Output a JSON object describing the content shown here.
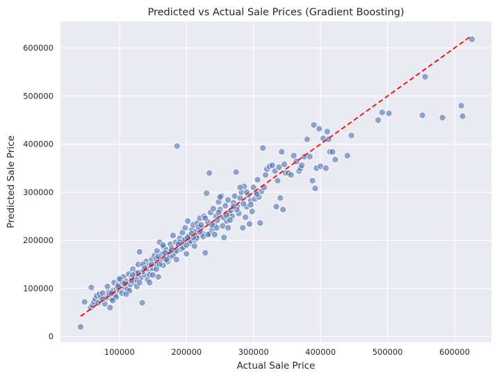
{
  "chart_data": {
    "type": "scatter",
    "title": "Predicted vs Actual Sale Prices (Gradient Boosting)",
    "xlabel": "Actual Sale Price",
    "ylabel": "Predicted Sale Price",
    "xlim": [
      12000,
      655000
    ],
    "ylim": [
      -12000,
      655000
    ],
    "xticks": [
      100000,
      200000,
      300000,
      400000,
      500000,
      600000
    ],
    "yticks": [
      0,
      100000,
      200000,
      300000,
      400000,
      500000,
      600000
    ],
    "xtick_labels": [
      "100000",
      "200000",
      "300000",
      "400000",
      "500000",
      "600000"
    ],
    "ytick_labels": [
      "0",
      "100000",
      "200000",
      "300000",
      "400000",
      "500000",
      "600000"
    ],
    "grid": true,
    "background": "#eaeaf2",
    "point_color": "#4c72b0",
    "reference_line": {
      "x": [
        42000,
        625000
      ],
      "y": [
        42000,
        625000
      ],
      "color": "#ff0000",
      "style": "dashed"
    },
    "points": [
      [
        42000,
        20000
      ],
      [
        48000,
        72000
      ],
      [
        57000,
        60000
      ],
      [
        58000,
        102000
      ],
      [
        60000,
        65000
      ],
      [
        62000,
        72000
      ],
      [
        64000,
        78000
      ],
      [
        66000,
        85000
      ],
      [
        68000,
        70000
      ],
      [
        70000,
        88000
      ],
      [
        72000,
        82000
      ],
      [
        75000,
        90000
      ],
      [
        78000,
        68000
      ],
      [
        80000,
        80000
      ],
      [
        82000,
        104000
      ],
      [
        84000,
        92000
      ],
      [
        86000,
        60000
      ],
      [
        88000,
        78000
      ],
      [
        90000,
        95000
      ],
      [
        92000,
        112000
      ],
      [
        94000,
        86000
      ],
      [
        96000,
        100000
      ],
      [
        98000,
        108000
      ],
      [
        100000,
        96000
      ],
      [
        102000,
        118000
      ],
      [
        104000,
        90000
      ],
      [
        106000,
        124000
      ],
      [
        108000,
        102000
      ],
      [
        110000,
        115000
      ],
      [
        112000,
        98000
      ],
      [
        114000,
        130000
      ],
      [
        116000,
        108000
      ],
      [
        118000,
        122000
      ],
      [
        120000,
        140000
      ],
      [
        122000,
        112000
      ],
      [
        124000,
        132000
      ],
      [
        126000,
        104000
      ],
      [
        128000,
        150000
      ],
      [
        130000,
        176000
      ],
      [
        132000,
        122000
      ],
      [
        134000,
        70000
      ],
      [
        136000,
        140000
      ],
      [
        138000,
        128000
      ],
      [
        140000,
        156000
      ],
      [
        142000,
        118000
      ],
      [
        144000,
        148000
      ],
      [
        146000,
        136000
      ],
      [
        148000,
        160000
      ],
      [
        150000,
        142000
      ],
      [
        152000,
        168000
      ],
      [
        154000,
        150000
      ],
      [
        156000,
        178000
      ],
      [
        158000,
        124000
      ],
      [
        160000,
        196000
      ],
      [
        162000,
        158000
      ],
      [
        164000,
        172000
      ],
      [
        166000,
        186000
      ],
      [
        168000,
        162000
      ],
      [
        170000,
        180000
      ],
      [
        172000,
        156000
      ],
      [
        174000,
        170000
      ],
      [
        176000,
        192000
      ],
      [
        178000,
        184000
      ],
      [
        180000,
        210000
      ],
      [
        182000,
        176000
      ],
      [
        184000,
        196000
      ],
      [
        186000,
        396000
      ],
      [
        188000,
        188000
      ],
      [
        190000,
        204000
      ],
      [
        192000,
        182000
      ],
      [
        194000,
        216000
      ],
      [
        196000,
        198000
      ],
      [
        198000,
        226000
      ],
      [
        200000,
        172000
      ],
      [
        202000,
        240000
      ],
      [
        204000,
        210000
      ],
      [
        206000,
        194000
      ],
      [
        208000,
        222000
      ],
      [
        210000,
        232000
      ],
      [
        212000,
        200000
      ],
      [
        214000,
        218000
      ],
      [
        216000,
        236000
      ],
      [
        218000,
        210000
      ],
      [
        220000,
        246000
      ],
      [
        222000,
        226000
      ],
      [
        224000,
        214000
      ],
      [
        226000,
        250000
      ],
      [
        228000,
        174000
      ],
      [
        230000,
        298000
      ],
      [
        232000,
        238000
      ],
      [
        234000,
        340000
      ],
      [
        236000,
        258000
      ],
      [
        238000,
        222000
      ],
      [
        240000,
        266000
      ],
      [
        242000,
        232000
      ],
      [
        244000,
        250000
      ],
      [
        246000,
        242000
      ],
      [
        248000,
        280000
      ],
      [
        250000,
        264000
      ],
      [
        252000,
        292000
      ],
      [
        254000,
        230000
      ],
      [
        256000,
        206000
      ],
      [
        258000,
        272000
      ],
      [
        260000,
        240000
      ],
      [
        262000,
        284000
      ],
      [
        264000,
        256000
      ],
      [
        266000,
        262000
      ],
      [
        268000,
        250000
      ],
      [
        270000,
        278000
      ],
      [
        272000,
        292000
      ],
      [
        274000,
        342000
      ],
      [
        276000,
        270000
      ],
      [
        278000,
        256000
      ],
      [
        280000,
        288000
      ],
      [
        282000,
        300000
      ],
      [
        284000,
        226000
      ],
      [
        286000,
        312000
      ],
      [
        288000,
        248000
      ],
      [
        290000,
        270000
      ],
      [
        292000,
        294000
      ],
      [
        294000,
        234000
      ],
      [
        296000,
        282000
      ],
      [
        298000,
        260000
      ],
      [
        300000,
        310000
      ],
      [
        302000,
        286000
      ],
      [
        304000,
        300000
      ],
      [
        306000,
        326000
      ],
      [
        308000,
        290000
      ],
      [
        310000,
        236000
      ],
      [
        312000,
        302000
      ],
      [
        314000,
        392000
      ],
      [
        316000,
        310000
      ],
      [
        318000,
        336000
      ],
      [
        320000,
        348000
      ],
      [
        324000,
        354000
      ],
      [
        328000,
        356000
      ],
      [
        332000,
        344000
      ],
      [
        334000,
        270000
      ],
      [
        336000,
        324000
      ],
      [
        338000,
        352000
      ],
      [
        340000,
        288000
      ],
      [
        342000,
        384000
      ],
      [
        344000,
        264000
      ],
      [
        346000,
        358000
      ],
      [
        348000,
        340000
      ],
      [
        352000,
        340000
      ],
      [
        356000,
        336000
      ],
      [
        360000,
        376000
      ],
      [
        364000,
        364000
      ],
      [
        368000,
        344000
      ],
      [
        370000,
        350000
      ],
      [
        372000,
        356000
      ],
      [
        376000,
        374000
      ],
      [
        380000,
        410000
      ],
      [
        384000,
        374000
      ],
      [
        388000,
        324000
      ],
      [
        390000,
        440000
      ],
      [
        392000,
        308000
      ],
      [
        394000,
        350000
      ],
      [
        398000,
        432000
      ],
      [
        400000,
        354000
      ],
      [
        404000,
        412000
      ],
      [
        408000,
        350000
      ],
      [
        410000,
        426000
      ],
      [
        412000,
        410000
      ],
      [
        414000,
        384000
      ],
      [
        418000,
        384000
      ],
      [
        422000,
        368000
      ],
      [
        440000,
        376000
      ],
      [
        446000,
        418000
      ],
      [
        486000,
        450000
      ],
      [
        492000,
        466000
      ],
      [
        502000,
        464000
      ],
      [
        552000,
        460000
      ],
      [
        556000,
        540000
      ],
      [
        582000,
        455000
      ],
      [
        610000,
        480000
      ],
      [
        612000,
        458000
      ],
      [
        626000,
        618000
      ],
      [
        95000,
        82000
      ],
      [
        105000,
        112000
      ],
      [
        115000,
        95000
      ],
      [
        125000,
        118000
      ],
      [
        135000,
        135000
      ],
      [
        145000,
        128000
      ],
      [
        155000,
        162000
      ],
      [
        165000,
        148000
      ],
      [
        175000,
        165000
      ],
      [
        185000,
        178000
      ],
      [
        195000,
        185000
      ],
      [
        205000,
        198000
      ],
      [
        215000,
        205000
      ],
      [
        225000,
        208000
      ],
      [
        235000,
        214000
      ],
      [
        245000,
        226000
      ],
      [
        255000,
        248000
      ],
      [
        265000,
        242000
      ],
      [
        275000,
        264000
      ],
      [
        285000,
        276000
      ],
      [
        140000,
        140000
      ],
      [
        150000,
        128000
      ],
      [
        160000,
        150000
      ],
      [
        170000,
        160000
      ],
      [
        180000,
        168000
      ],
      [
        190000,
        196000
      ],
      [
        200000,
        190000
      ],
      [
        210000,
        206000
      ],
      [
        220000,
        218000
      ],
      [
        110000,
        88000
      ],
      [
        120000,
        128000
      ],
      [
        130000,
        112000
      ],
      [
        100000,
        120000
      ],
      [
        90000,
        75000
      ],
      [
        85000,
        88000
      ],
      [
        75000,
        78000
      ],
      [
        135000,
        150000
      ],
      [
        145000,
        112000
      ],
      [
        155000,
        140000
      ],
      [
        165000,
        190000
      ],
      [
        175000,
        176000
      ],
      [
        185000,
        160000
      ],
      [
        250000,
        290000
      ],
      [
        260000,
        252000
      ],
      [
        270000,
        270000
      ],
      [
        248000,
        258000
      ],
      [
        238000,
        232000
      ],
      [
        228000,
        246000
      ],
      [
        218000,
        228000
      ],
      [
        208000,
        214000
      ],
      [
        198000,
        202000
      ],
      [
        188000,
        192000
      ],
      [
        178000,
        180000
      ],
      [
        168000,
        174000
      ],
      [
        158000,
        166000
      ],
      [
        148000,
        150000
      ],
      [
        138000,
        142000
      ],
      [
        128000,
        132000
      ],
      [
        118000,
        116000
      ],
      [
        108000,
        110000
      ],
      [
        98000,
        104000
      ],
      [
        88000,
        90000
      ],
      [
        290000,
        300000
      ],
      [
        296000,
        274000
      ],
      [
        305000,
        296000
      ],
      [
        280000,
        310000
      ],
      [
        262000,
        226000
      ],
      [
        242000,
        212000
      ],
      [
        232000,
        212000
      ],
      [
        222000,
        232000
      ],
      [
        212000,
        188000
      ],
      [
        202000,
        206000
      ]
    ]
  }
}
